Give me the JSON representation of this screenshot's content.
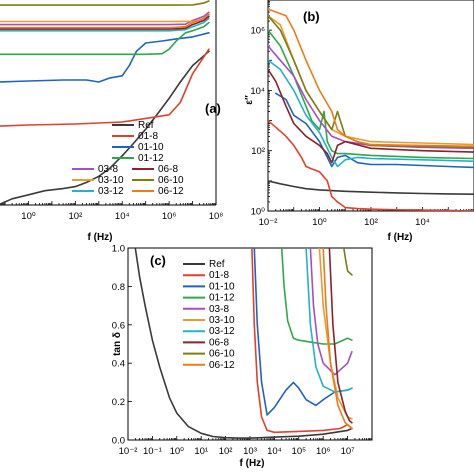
{
  "colors": {
    "Ref": "#3a3a3a",
    "01-8": "#e0412f",
    "01-10": "#1f63c0",
    "01-12": "#2fa84a",
    "03-8": "#a64ec4",
    "03-10": "#e89b2e",
    "03-12": "#25b2c9",
    "06-8": "#8e1f2b",
    "06-10": "#7f7d0f",
    "06-12": "#ef7a1a"
  },
  "chart_data": [
    {
      "id": "a",
      "panel_label": "(a)",
      "type": "line",
      "xlabel": "f (Hz)",
      "ylabel": "",
      "xscale": "log",
      "yscale": "linear",
      "xlim": [
        0.05,
        100000000
      ],
      "ylim": [
        0,
        1
      ],
      "xticks": [
        {
          "v": 1,
          "label": "10⁰"
        },
        {
          "v": 100,
          "label": "10²"
        },
        {
          "v": 10000,
          "label": "10⁴"
        },
        {
          "v": 1000000,
          "label": "10⁶"
        },
        {
          "v": 100000000,
          "label": "10⁸"
        }
      ],
      "legend": {
        "position": "bottom-right",
        "columns": 1,
        "entries": [
          "Ref",
          "01-8",
          "01-10",
          "01-12",
          "03-8",
          "06-8",
          "03-10",
          "06-10",
          "03-12",
          "06-12"
        ]
      },
      "series": [
        {
          "name": "Ref",
          "x": [
            0.05,
            0.2,
            1,
            5,
            30,
            100,
            300,
            1000,
            3000,
            10000,
            30000,
            100000,
            300000,
            1000000,
            3000000,
            10000000,
            50000000
          ],
          "y": [
            0.0,
            0.03,
            0.05,
            0.07,
            0.08,
            0.09,
            0.11,
            0.14,
            0.18,
            0.24,
            0.3,
            0.37,
            0.44,
            0.52,
            0.6,
            0.68,
            0.75
          ]
        },
        {
          "name": "01-8",
          "x": [
            0.05,
            1,
            100,
            10000,
            1000000,
            3000000,
            10000000,
            50000000
          ],
          "y": [
            0.385,
            0.39,
            0.395,
            0.405,
            0.44,
            0.5,
            0.64,
            0.76
          ]
        },
        {
          "name": "01-10",
          "x": [
            0.05,
            1,
            30,
            300,
            1000,
            3000,
            10000,
            20000,
            40000,
            100000,
            500000,
            2000000,
            10000000,
            50000000
          ],
          "y": [
            0.6,
            0.605,
            0.61,
            0.61,
            0.6,
            0.62,
            0.63,
            0.68,
            0.75,
            0.79,
            0.8,
            0.81,
            0.82,
            0.84
          ]
        },
        {
          "name": "01-12",
          "x": [
            0.05,
            1,
            100,
            10000,
            100000,
            500000,
            1000000,
            2000000,
            5000000,
            10000000,
            30000000,
            50000000
          ],
          "y": [
            0.735,
            0.735,
            0.735,
            0.735,
            0.735,
            0.738,
            0.76,
            0.8,
            0.84,
            0.85,
            0.87,
            0.89
          ]
        },
        {
          "name": "03-8",
          "x": [
            0.05,
            1,
            100,
            1000000,
            5000000,
            10000000,
            30000000,
            50000000
          ],
          "y": [
            0.88,
            0.88,
            0.88,
            0.88,
            0.882,
            0.9,
            0.92,
            0.94
          ]
        },
        {
          "name": "03-10",
          "x": [
            0.05,
            1,
            100,
            1000000,
            10000000,
            30000000,
            50000000
          ],
          "y": [
            0.895,
            0.895,
            0.895,
            0.895,
            0.896,
            0.9,
            0.93
          ]
        },
        {
          "name": "03-12",
          "x": [
            0.05,
            1,
            100,
            1000000,
            5000000,
            10000000,
            30000000,
            50000000
          ],
          "y": [
            0.85,
            0.85,
            0.85,
            0.85,
            0.855,
            0.87,
            0.89,
            0.91
          ]
        },
        {
          "name": "06-8",
          "x": [
            0.05,
            1,
            100,
            1000000,
            5000000,
            10000000,
            30000000,
            50000000
          ],
          "y": [
            0.858,
            0.858,
            0.858,
            0.858,
            0.862,
            0.88,
            0.9,
            0.92
          ]
        },
        {
          "name": "06-10",
          "x": [
            0.05,
            1,
            100,
            1000000,
            10000000,
            30000000,
            50000000
          ],
          "y": [
            0.975,
            0.975,
            0.975,
            0.975,
            0.976,
            0.985,
            0.995
          ]
        },
        {
          "name": "06-12",
          "x": [
            0.05,
            1,
            100,
            1000000,
            5000000,
            10000000,
            30000000,
            50000000
          ],
          "y": [
            0.865,
            0.865,
            0.865,
            0.865,
            0.87,
            0.89,
            0.91,
            0.93
          ]
        }
      ]
    },
    {
      "id": "b",
      "panel_label": "(b)",
      "type": "line",
      "xlabel": "f (Hz)",
      "ylabel": "ε″",
      "xscale": "log",
      "yscale": "log",
      "xlim": [
        0.01,
        1000000
      ],
      "ylim": [
        1,
        10000000
      ],
      "xticks": [
        {
          "v": 0.01,
          "label": "10⁻²"
        },
        {
          "v": 1,
          "label": "10⁰"
        },
        {
          "v": 100,
          "label": "10²"
        },
        {
          "v": 10000,
          "label": "10⁴"
        }
      ],
      "yticks": [
        {
          "v": 1,
          "label": "10⁰"
        },
        {
          "v": 100,
          "label": "10²"
        },
        {
          "v": 10000,
          "label": "10⁴"
        },
        {
          "v": 1000000,
          "label": "10⁶"
        }
      ],
      "series": [
        {
          "name": "Ref",
          "x": [
            0.01,
            0.03,
            0.1,
            0.3,
            1,
            10,
            100,
            1000,
            10000,
            100000,
            1000000
          ],
          "y": [
            10,
            8,
            6.5,
            5.5,
            5,
            4.5,
            4.2,
            4,
            3.8,
            3.7,
            3.6
          ]
        },
        {
          "name": "01-8",
          "x": [
            0.01,
            0.02,
            0.05,
            0.1,
            0.2,
            0.3,
            0.5,
            1,
            2,
            3,
            5,
            10,
            30,
            100,
            1000,
            100000,
            1000000
          ],
          "y": [
            1000,
            600,
            300,
            150,
            60,
            30,
            25,
            20,
            10,
            3,
            2,
            1.3,
            1.2,
            1.15,
            1.1,
            1.05,
            1
          ]
        },
        {
          "name": "01-10",
          "x": [
            0.02,
            0.05,
            0.1,
            0.3,
            1,
            2,
            3,
            5,
            10,
            30,
            100,
            1000,
            100000,
            1000000
          ],
          "y": [
            8000,
            5000,
            1500,
            800,
            200,
            60,
            30,
            60,
            70,
            40,
            35,
            35,
            30,
            28
          ]
        },
        {
          "name": "01-12",
          "x": [
            0.01,
            0.03,
            0.1,
            0.3,
            0.5,
            1,
            1.5,
            2,
            3,
            5,
            10,
            100,
            10000,
            1000000
          ],
          "y": [
            1000000,
            300000,
            30000,
            3000,
            1000,
            500,
            2000,
            200,
            100,
            80,
            80,
            70,
            60,
            55
          ]
        },
        {
          "name": "03-8",
          "x": [
            0.01,
            0.03,
            0.1,
            0.3,
            1,
            3,
            10,
            100,
            10000,
            1000000
          ],
          "y": [
            300000,
            100000,
            30000,
            5000,
            1000,
            300,
            200,
            150,
            130,
            120
          ]
        },
        {
          "name": "03-10",
          "x": [
            0.01,
            0.03,
            0.1,
            0.3,
            1,
            3,
            10,
            100,
            10000,
            1000000
          ],
          "y": [
            3000000,
            1500000,
            100000,
            10000,
            2000,
            500,
            300,
            200,
            180,
            160
          ]
        },
        {
          "name": "03-12",
          "x": [
            0.01,
            0.03,
            0.1,
            0.3,
            1,
            3,
            5,
            10,
            30,
            100,
            10000,
            1000000
          ],
          "y": [
            100000,
            50000,
            10000,
            1500,
            400,
            60,
            30,
            50,
            60,
            55,
            50,
            45
          ]
        },
        {
          "name": "06-8",
          "x": [
            0.01,
            0.02,
            0.05,
            0.1,
            0.3,
            1,
            2,
            3,
            5,
            10,
            100,
            10000,
            1000000
          ],
          "y": [
            50000,
            20000,
            3000,
            800,
            300,
            150,
            80,
            40,
            150,
            200,
            120,
            100,
            90
          ]
        },
        {
          "name": "06-10",
          "x": [
            0.01,
            0.03,
            0.1,
            0.3,
            1,
            3,
            5,
            10,
            30,
            100,
            10000,
            1000000
          ],
          "y": [
            3000000,
            1000000,
            100000,
            10000,
            2000,
            500,
            2000,
            300,
            200,
            150,
            140,
            130
          ]
        },
        {
          "name": "06-12",
          "x": [
            0.01,
            0.02,
            0.05,
            0.1,
            0.3,
            1,
            3,
            5,
            10,
            30,
            100,
            10000,
            1000000
          ],
          "y": [
            5000000,
            4000000,
            3000000,
            1000000,
            100000,
            10000,
            2000,
            500,
            300,
            200,
            160,
            150,
            140
          ]
        }
      ]
    },
    {
      "id": "c",
      "panel_label": "(c)",
      "type": "line",
      "xlabel": "f (Hz)",
      "ylabel": "tan δ",
      "xscale": "log",
      "yscale": "linear",
      "xlim": [
        0.01,
        100000000
      ],
      "ylim": [
        0,
        1
      ],
      "xticks": [
        {
          "v": 0.01,
          "label": "10⁻²"
        },
        {
          "v": 0.1,
          "label": "10⁻¹"
        },
        {
          "v": 1,
          "label": "10⁰"
        },
        {
          "v": 10,
          "label": "10¹"
        },
        {
          "v": 100,
          "label": "10²"
        },
        {
          "v": 1000,
          "label": "10³"
        },
        {
          "v": 10000,
          "label": "10⁴"
        },
        {
          "v": 100000,
          "label": "10⁵"
        },
        {
          "v": 1000000,
          "label": "10⁶"
        },
        {
          "v": 10000000,
          "label": "10⁷"
        }
      ],
      "yticks": [
        {
          "v": 0.0,
          "label": "0.0"
        },
        {
          "v": 0.2,
          "label": "0.2"
        },
        {
          "v": 0.4,
          "label": "0.4"
        },
        {
          "v": 0.6,
          "label": "0.6"
        },
        {
          "v": 0.8,
          "label": "0.8"
        },
        {
          "v": 1.0,
          "label": "1.0"
        }
      ],
      "legend": {
        "position": "top-left",
        "columns": 1,
        "entries": [
          "Ref",
          "01-8",
          "01-10",
          "01-12",
          "03-8",
          "03-10",
          "03-12",
          "06-8",
          "06-10",
          "06-12"
        ]
      },
      "series": [
        {
          "name": "Ref",
          "x": [
            0.02,
            0.03,
            0.05,
            0.1,
            0.2,
            0.5,
            1,
            3,
            10,
            30,
            100,
            300,
            1000,
            3000,
            10000,
            100000,
            1000000,
            10000000,
            15000000
          ],
          "y": [
            1.0,
            0.85,
            0.7,
            0.52,
            0.38,
            0.22,
            0.14,
            0.07,
            0.035,
            0.018,
            0.012,
            0.01,
            0.01,
            0.012,
            0.015,
            0.02,
            0.03,
            0.05,
            0.06
          ]
        },
        {
          "name": "01-8",
          "x": [
            1200,
            1500,
            2000,
            3000,
            5000,
            10000,
            100000,
            1000000,
            5000000,
            10000000,
            15000000
          ],
          "y": [
            1.0,
            0.6,
            0.3,
            0.12,
            0.05,
            0.04,
            0.045,
            0.05,
            0.06,
            0.08,
            0.06
          ]
        },
        {
          "name": "01-10",
          "x": [
            1500,
            2000,
            3000,
            5000,
            10000,
            30000,
            60000,
            100000,
            200000,
            500000,
            1000000,
            3000000,
            10000000,
            15000000
          ],
          "y": [
            1.0,
            0.6,
            0.3,
            0.13,
            0.17,
            0.26,
            0.3,
            0.27,
            0.21,
            0.18,
            0.21,
            0.25,
            0.26,
            0.27
          ]
        },
        {
          "name": "01-12",
          "x": [
            20000,
            25000,
            35000,
            60000,
            100000,
            300000,
            1000000,
            3000000,
            10000000,
            15000000
          ],
          "y": [
            1.0,
            0.8,
            0.62,
            0.53,
            0.52,
            0.51,
            0.5,
            0.5,
            0.53,
            0.52
          ]
        },
        {
          "name": "03-8",
          "x": [
            300000,
            400000,
            600000,
            1000000,
            3000000,
            10000000,
            15000000
          ],
          "y": [
            1.0,
            0.7,
            0.5,
            0.4,
            0.34,
            0.4,
            0.46
          ]
        },
        {
          "name": "03-10",
          "x": [
            700000,
            1000000,
            2000000,
            4000000,
            10000000,
            15000000
          ],
          "y": [
            1.0,
            0.7,
            0.4,
            0.22,
            0.12,
            0.11
          ]
        },
        {
          "name": "03-12",
          "x": [
            200000,
            300000,
            500000,
            1000000,
            3000000,
            10000000,
            15000000
          ],
          "y": [
            1.0,
            0.6,
            0.38,
            0.28,
            0.25,
            0.26,
            0.27
          ]
        },
        {
          "name": "06-8",
          "x": [
            1800000,
            2500000,
            4000000,
            8000000,
            12000000,
            15000000
          ],
          "y": [
            1.0,
            0.6,
            0.3,
            0.15,
            0.1,
            0.09
          ]
        },
        {
          "name": "06-10",
          "x": [
            7000000,
            8500000,
            10000000,
            15000000
          ],
          "y": [
            1.0,
            0.93,
            0.88,
            0.86
          ]
        },
        {
          "name": "06-12",
          "x": [
            1000000,
            1300000,
            2000000,
            4000000,
            8000000,
            15000000
          ],
          "y": [
            1.0,
            0.7,
            0.4,
            0.18,
            0.09,
            0.06
          ]
        }
      ]
    }
  ]
}
